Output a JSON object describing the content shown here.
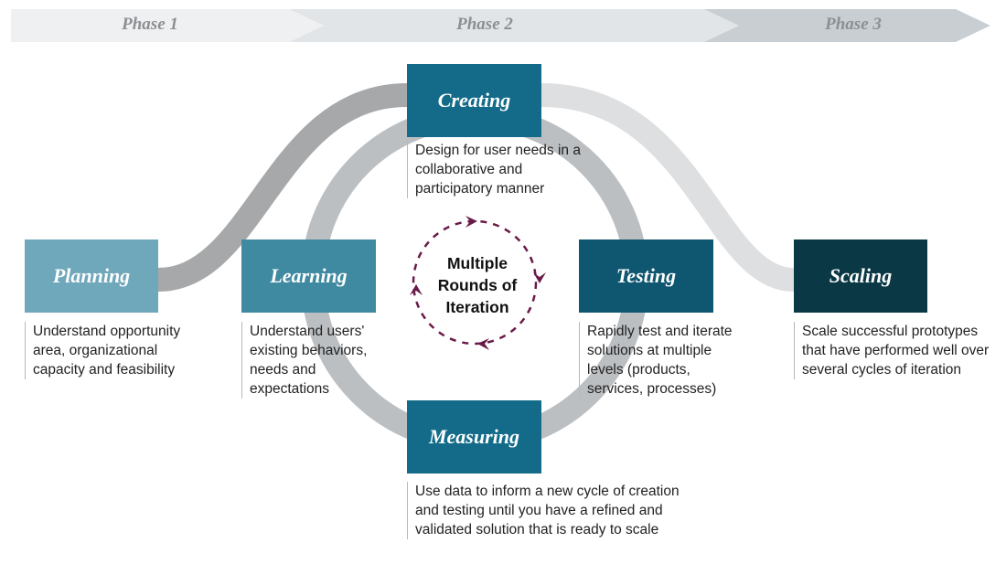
{
  "phases": {
    "phase1": "Phase 1",
    "phase2": "Phase 2",
    "phase3": "Phase 3"
  },
  "stages": {
    "planning": {
      "title": "Planning",
      "description": "Understand opportunity area, organizational capacity and feasibility"
    },
    "learning": {
      "title": "Learning",
      "description": "Understand users' existing behaviors, needs and expectations"
    },
    "creating": {
      "title": "Creating",
      "description": "Design for user needs in a collaborative and participatory manner"
    },
    "testing": {
      "title": "Testing",
      "description": "Rapidly test and iterate solutions at multiple levels (products, services, processes)"
    },
    "measuring": {
      "title": "Measuring",
      "description": "Use data to inform a new cycle of creation and testing until you have a refined and validated solution that is ready to scale"
    },
    "scaling": {
      "title": "Scaling",
      "description": "Scale successful prototypes that have performed well over several cycles of iteration"
    }
  },
  "center": {
    "line1": "Multiple",
    "line2": "Rounds of",
    "line3": "Iteration"
  },
  "colors": {
    "planning": "#6fa7bb",
    "learning": "#3f8aa1",
    "creating": "#136b89",
    "measuring": "#136b89",
    "testing": "#0f5670",
    "scaling": "#0b3845",
    "iteration_arrows": "#6a1a48",
    "phase_text": "#8c8f93"
  }
}
